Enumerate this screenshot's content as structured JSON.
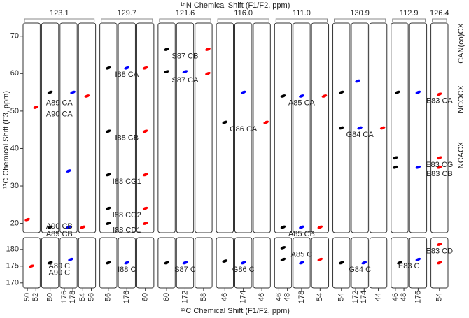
{
  "chart_data": {
    "type": "strip",
    "top_title": "¹⁵N Chemical Shift (F1/F2, ppm)",
    "x_label": "¹³C Chemical Shift (F1/F2, ppm)",
    "y_label": "¹³C Chemical Shift (F3, ppm)",
    "panels": [
      {
        "ylim": [
          17.5,
          73.5
        ],
        "yticks": [
          20,
          30,
          40,
          50,
          60,
          70
        ]
      },
      {
        "ylim": [
          168.5,
          183.5
        ],
        "yticks": [
          170,
          175,
          180
        ]
      }
    ],
    "groups": [
      {
        "label": "123.1",
        "strips": [
          {
            "xlim": [
              49,
              53
            ],
            "xticks": [
              50,
              52
            ]
          },
          {
            "xlim": [
              49,
              51
            ],
            "xticks": [
              50
            ]
          },
          {
            "xlim": [
              175,
              179
            ],
            "xticks": [
              176,
              178
            ]
          },
          {
            "xlim": [
              53,
              57
            ],
            "xticks": [
              54,
              56
            ]
          }
        ]
      },
      {
        "label": "129.7",
        "strips": [
          {
            "xlim": [
              55,
              57
            ],
            "xticks": [
              56
            ]
          },
          {
            "xlim": [
              175,
              177
            ],
            "xticks": [
              176
            ]
          },
          {
            "xlim": [
              59,
              61
            ],
            "xticks": [
              60
            ]
          }
        ]
      },
      {
        "label": "121.6",
        "strips": [
          {
            "xlim": [
              59,
              61
            ],
            "xticks": [
              60
            ]
          },
          {
            "xlim": [
              171,
              173
            ],
            "xticks": [
              172
            ]
          },
          {
            "xlim": [
              57,
              59
            ],
            "xticks": [
              58
            ]
          }
        ]
      },
      {
        "label": "116.0",
        "strips": [
          {
            "xlim": [
              45,
              47
            ],
            "xticks": [
              46
            ]
          },
          {
            "xlim": [
              173,
              175
            ],
            "xticks": [
              174
            ]
          },
          {
            "xlim": [
              45,
              47
            ],
            "xticks": [
              46
            ]
          }
        ]
      },
      {
        "label": "111.0",
        "strips": [
          {
            "xlim": [
              45,
              49
            ],
            "xticks": [
              46,
              48
            ]
          },
          {
            "xlim": [
              177,
              179
            ],
            "xticks": [
              178
            ]
          },
          {
            "xlim": [
              53,
              55
            ],
            "xticks": [
              54
            ]
          }
        ]
      },
      {
        "label": "130.9",
        "strips": [
          {
            "xlim": [
              53,
              55
            ],
            "xticks": [
              54
            ]
          },
          {
            "xlim": [
              171,
              175
            ],
            "xticks": [
              172,
              174
            ]
          },
          {
            "xlim": [
              43,
              45
            ],
            "xticks": [
              44
            ]
          }
        ]
      },
      {
        "label": "112.9",
        "strips": [
          {
            "xlim": [
              45,
              49
            ],
            "xticks": [
              46,
              48
            ]
          },
          {
            "xlim": [
              175,
              177
            ],
            "xticks": [
              176
            ]
          }
        ]
      },
      {
        "label": "126.4",
        "strips": [
          {
            "xlim": [
              53,
              55
            ],
            "xticks": [
              54
            ]
          }
        ]
      }
    ],
    "series": [
      {
        "name": "CAN(co)CX",
        "color": "#000000",
        "strip": [
          1,
          1,
          1,
          4,
          4,
          4,
          4,
          4,
          4,
          7,
          7,
          7,
          10,
          10,
          13,
          13,
          13,
          13,
          16,
          16,
          16,
          19,
          19,
          19,
          19
        ],
        "x": [
          50,
          50,
          50,
          56,
          56,
          56,
          56,
          56,
          56,
          60,
          60,
          60,
          46,
          46,
          47,
          47,
          47,
          47,
          54,
          54,
          54,
          46,
          46,
          46.5,
          47
        ],
        "y": [
          19,
          55,
          176,
          20,
          24,
          33,
          44.6,
          61.5,
          176,
          60.5,
          66.5,
          176,
          47,
          176.5,
          19,
          54,
          177,
          180.5,
          45.5,
          55,
          176,
          35,
          37.5,
          55,
          176
        ],
        "labels": [
          null,
          null,
          null,
          null,
          null,
          null,
          null,
          null,
          null,
          null,
          null,
          null,
          null,
          null,
          null,
          null,
          null,
          "A85 C",
          null,
          null,
          null,
          null,
          null,
          null,
          null
        ]
      },
      {
        "name": "NCOCX",
        "color": "#0000ff",
        "strip": [
          2,
          2,
          2,
          2,
          5,
          5,
          8,
          8,
          11,
          11,
          14,
          14,
          14,
          17,
          17,
          17,
          20,
          20,
          20
        ],
        "x": [
          177,
          177,
          178,
          177.5,
          176,
          176,
          172,
          172,
          174,
          174,
          178,
          178,
          178,
          173,
          172.5,
          174,
          176,
          176,
          176
        ],
        "y": [
          19,
          34,
          55,
          177,
          61.5,
          176,
          60.5,
          176,
          55,
          176,
          19,
          54,
          176,
          45.5,
          58,
          176,
          35,
          55,
          177
        ],
        "labels": [
          null,
          null,
          null,
          "A89 C",
          null,
          "I88 C",
          null,
          "S87 C",
          null,
          "G86 C",
          null,
          null,
          null,
          null,
          null,
          "G84 C",
          null,
          null,
          "E83 C"
        ]
      },
      {
        "name": "NCACX",
        "color": "#ff0000",
        "strip": [
          0,
          0,
          0,
          3,
          3,
          6,
          6,
          6,
          6,
          6,
          9,
          9,
          12,
          15,
          15,
          15,
          18,
          21,
          21,
          21,
          21,
          21
        ],
        "x": [
          50,
          52,
          51,
          54,
          55,
          60,
          60,
          60,
          60,
          60,
          58.5,
          58.5,
          46.5,
          54,
          54.5,
          54,
          44.5,
          54,
          54,
          54,
          54,
          54
        ],
        "y": [
          21,
          51,
          175,
          19,
          54,
          20,
          24,
          33,
          44.6,
          61.5,
          60,
          66.5,
          47,
          19,
          54,
          177,
          45.5,
          35,
          37.5,
          54.5,
          176,
          181.5
        ],
        "labels": [
          "A90 CB",
          "A90 CA",
          "A90 C",
          "A89 CB",
          "A89 CA",
          "I88 CD1",
          "I88 CG2",
          "I88 CG1",
          "I88 CB",
          "I88 CA",
          "S87 CA",
          "S87 CB",
          "G86 CA",
          "A85 CB",
          "A85 CA",
          null,
          "G84 CA",
          "E83 CB",
          "E83 CG",
          "E83 CA",
          null,
          "E83 CD"
        ]
      }
    ]
  }
}
